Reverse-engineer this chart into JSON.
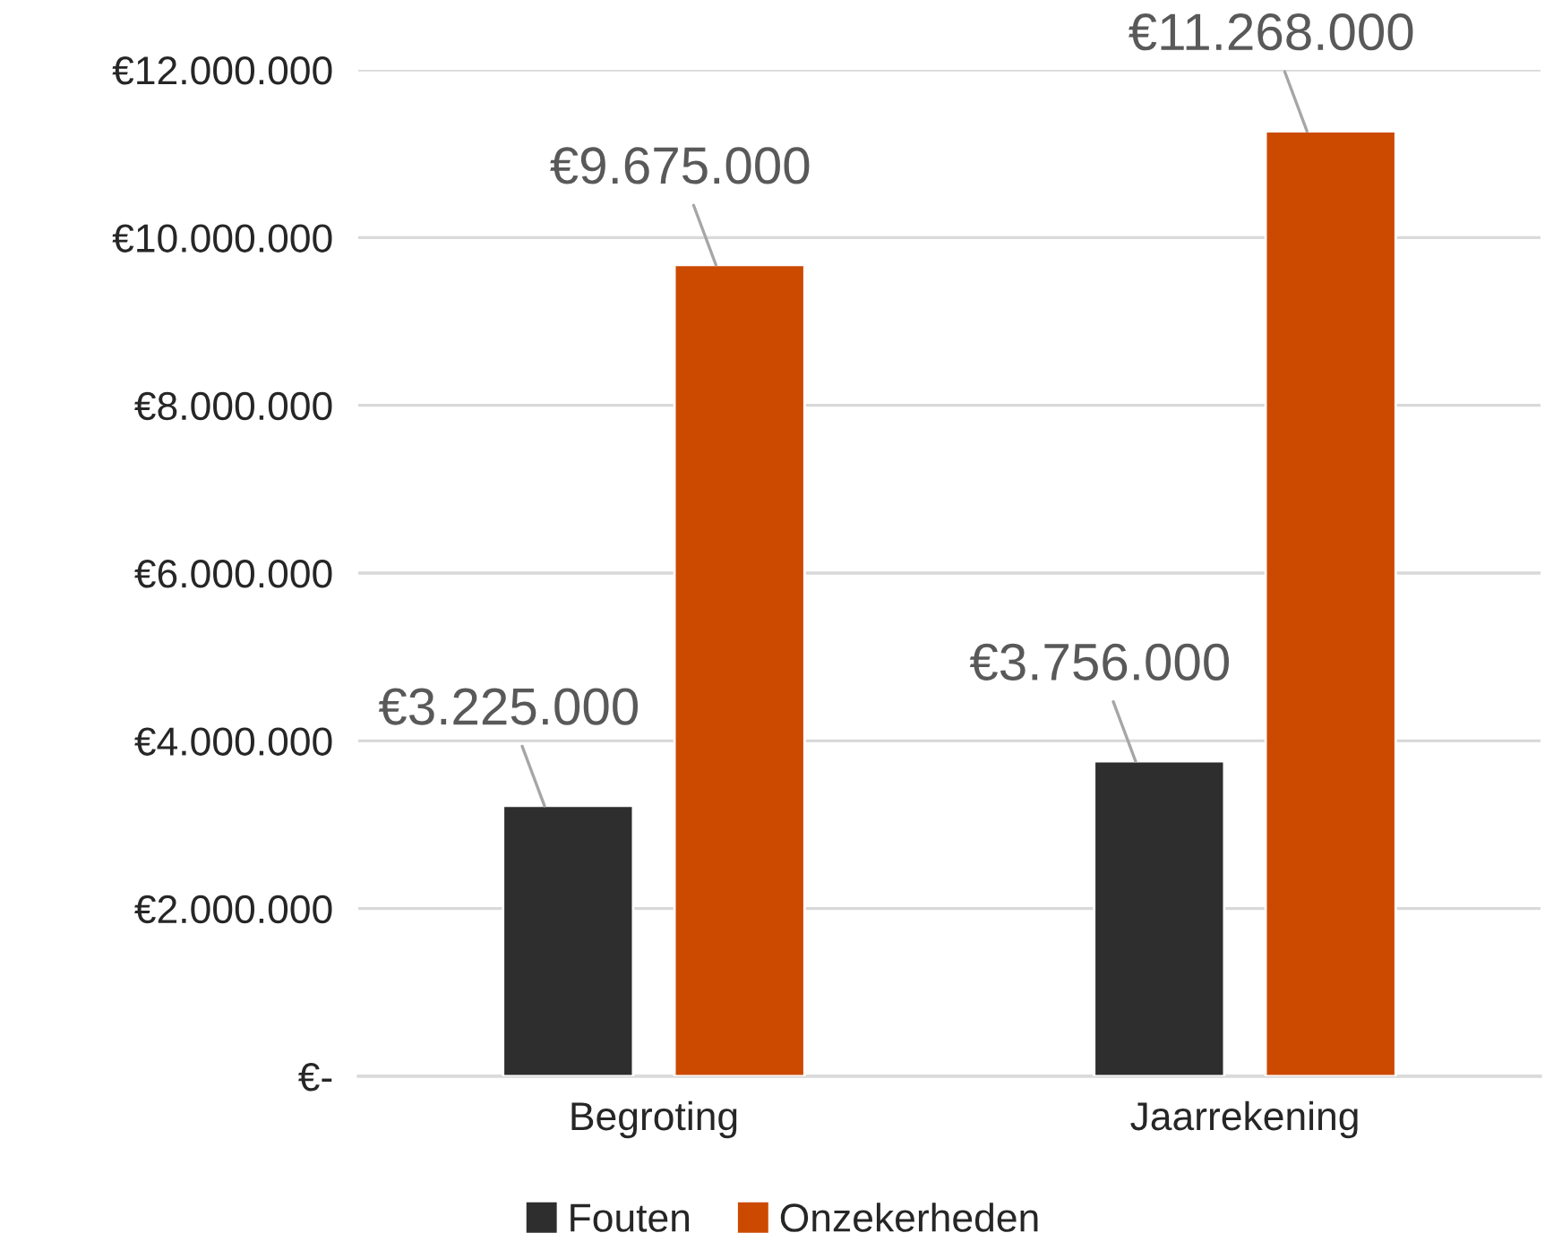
{
  "chart_data": {
    "type": "bar",
    "categories": [
      "Begroting",
      "Jaarrekening"
    ],
    "series": [
      {
        "name": "Fouten",
        "color": "#2e2e2e",
        "values": [
          3225000,
          3756000
        ],
        "value_labels": [
          "€3.225.000",
          "€3.756.000"
        ]
      },
      {
        "name": "Onzekerheden",
        "color": "#cc4a00",
        "values": [
          9675000,
          11268000
        ],
        "value_labels": [
          "€9.675.000",
          "€11.268.000"
        ]
      }
    ],
    "ylim": [
      0,
      12000000
    ],
    "yticks": [
      {
        "value": 0,
        "label": "€-"
      },
      {
        "value": 2000000,
        "label": "€2.000.000"
      },
      {
        "value": 4000000,
        "label": "€4.000.000"
      },
      {
        "value": 6000000,
        "label": "€6.000.000"
      },
      {
        "value": 8000000,
        "label": "€8.000.000"
      },
      {
        "value": 10000000,
        "label": "€10.000.000"
      },
      {
        "value": 12000000,
        "label": "€12.000.000"
      }
    ],
    "grid": "y",
    "legend": "bottom"
  }
}
